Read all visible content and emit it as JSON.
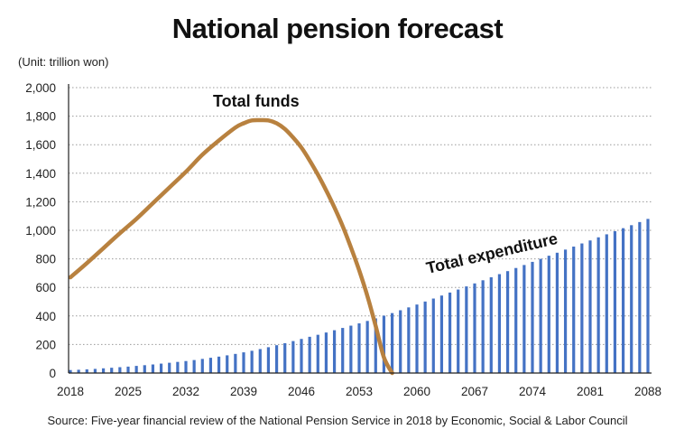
{
  "chart_data": {
    "type": "bar",
    "title": "National pension forecast",
    "unit_label": "(Unit: trillion won)",
    "source": "Source: Five-year financial review of the National Pension Service in 2018 by Economic, Social & Labor Council",
    "ylim": [
      0,
      2000
    ],
    "yticks": [
      0,
      200,
      400,
      600,
      800,
      1000,
      1200,
      1400,
      1600,
      1800,
      2000
    ],
    "ytick_labels": [
      "0",
      "200",
      "400",
      "600",
      "800",
      "1,000",
      "1,200",
      "1,400",
      "1,600",
      "1,800",
      "2,000"
    ],
    "xlim": [
      2018,
      2088
    ],
    "xticks": [
      "2018",
      "2025",
      "2032",
      "2039",
      "2046",
      "2053",
      "2060",
      "2067",
      "2074",
      "2081",
      "2088"
    ],
    "grid": "horizontal dotted",
    "colors": {
      "bars": "#4472c4",
      "funds_line": "#b8813f"
    },
    "series": [
      {
        "name": "Total expenditure",
        "kind": "bar",
        "x": [
          2018,
          2019,
          2020,
          2021,
          2022,
          2023,
          2024,
          2025,
          2026,
          2027,
          2028,
          2029,
          2030,
          2031,
          2032,
          2033,
          2034,
          2035,
          2036,
          2037,
          2038,
          2039,
          2040,
          2041,
          2042,
          2043,
          2044,
          2045,
          2046,
          2047,
          2048,
          2049,
          2050,
          2051,
          2052,
          2053,
          2054,
          2055,
          2056,
          2057,
          2058,
          2059,
          2060,
          2061,
          2062,
          2063,
          2064,
          2065,
          2066,
          2067,
          2068,
          2069,
          2070,
          2071,
          2072,
          2073,
          2074,
          2075,
          2076,
          2077,
          2078,
          2079,
          2080,
          2081,
          2082,
          2083,
          2084,
          2085,
          2086,
          2087,
          2088
        ],
        "values": [
          21,
          23,
          26,
          29,
          33,
          37,
          41,
          45,
          50,
          55,
          60,
          66,
          72,
          78,
          84,
          91,
          99,
          107,
          115,
          124,
          134,
          145,
          156,
          168,
          181,
          195,
          209,
          224,
          239,
          254,
          268,
          284,
          300,
          316,
          332,
          348,
          365,
          383,
          402,
          420,
          440,
          460,
          480,
          501,
          522,
          543,
          564,
          585,
          607,
          628,
          650,
          671,
          693,
          714,
          736,
          757,
          779,
          800,
          822,
          843,
          865,
          886,
          908,
          929,
          951,
          972,
          994,
          1015,
          1036,
          1058,
          1080
        ]
      },
      {
        "name": "Total funds",
        "kind": "line",
        "x": [
          2018,
          2020,
          2022,
          2024,
          2026,
          2028,
          2030,
          2032,
          2034,
          2036,
          2038,
          2039,
          2040,
          2041,
          2042,
          2043,
          2044,
          2045,
          2046,
          2047,
          2048,
          2049,
          2050,
          2051,
          2052,
          2053,
          2054,
          2055,
          2056,
          2057
        ],
        "values": [
          670,
          770,
          875,
          980,
          1080,
          1190,
          1300,
          1410,
          1530,
          1630,
          1720,
          1750,
          1770,
          1772,
          1770,
          1750,
          1710,
          1650,
          1580,
          1490,
          1390,
          1280,
          1160,
          1030,
          880,
          720,
          540,
          330,
          110,
          0
        ]
      }
    ]
  }
}
